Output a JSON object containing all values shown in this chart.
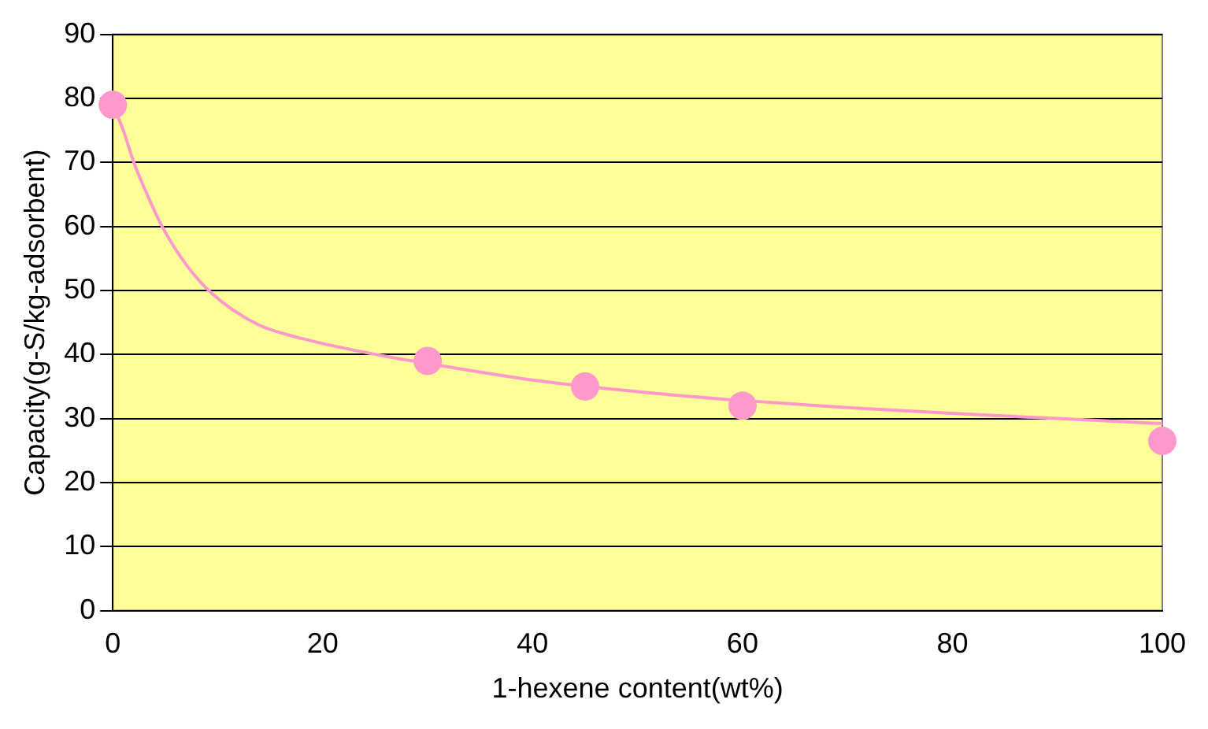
{
  "chart_data": {
    "type": "scatter",
    "xlabel": "1-hexene content(wt%)",
    "ylabel": "Capacity(g-S/kg-adsorbent)",
    "xlim": [
      0,
      100
    ],
    "xticks": [
      0,
      20,
      40,
      60,
      80,
      100
    ],
    "ylim": [
      0,
      90
    ],
    "yticks": [
      0,
      10,
      20,
      30,
      40,
      50,
      60,
      70,
      80,
      90
    ],
    "grid": "y",
    "legend": false,
    "series": [
      {
        "type": "scatter",
        "color": "#ff99cc",
        "marker": "circle",
        "x": [
          0,
          30,
          45,
          60,
          100
        ],
        "values": [
          79,
          39,
          35,
          32,
          26.5
        ]
      },
      {
        "type": "line",
        "color": "#ff99cc",
        "marker": "none",
        "line_style": "solid",
        "x": [
          0,
          1,
          2,
          3,
          4.7,
          7,
          9.4,
          13.8,
          18,
          24.4,
          30,
          40,
          50,
          60,
          70,
          80,
          90,
          100
        ],
        "values": [
          79,
          75,
          70,
          66,
          60,
          54,
          49.6,
          44.7,
          42.5,
          40.2,
          38.6,
          36,
          34.2,
          32.8,
          31.7,
          30.8,
          30,
          29.2
        ]
      }
    ]
  }
}
